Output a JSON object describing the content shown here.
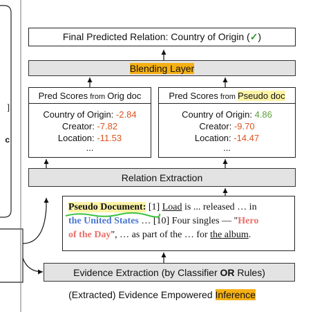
{
  "left_panel": {
    "fragments": [
      "]",
      "c"
    ]
  },
  "final_box": {
    "label": "Final Predicted Relation: Country of Origin (",
    "check": "✓",
    "close": ")"
  },
  "blending_layer": "Blending Layer",
  "orig_scores": {
    "title_big": "Pred Scores",
    "title_small": " from ",
    "title_tail": "Orig doc",
    "rows": [
      {
        "label": "Country of Origin: ",
        "value": "-2.84",
        "kind": "neg"
      },
      {
        "label": "Creator: ",
        "value": "-7.82",
        "kind": "neg"
      },
      {
        "label": "Location: ",
        "value": "-11.53",
        "kind": "neg"
      }
    ],
    "ellipsis": "..."
  },
  "pseudo_scores": {
    "title_big": "Pred Scores",
    "title_small": " from ",
    "title_tail": "Pseudo doc",
    "rows": [
      {
        "label": "Country of Origin: ",
        "value": "4.86",
        "kind": "pos"
      },
      {
        "label": "Creator: ",
        "value": "-9.70",
        "kind": "neg"
      },
      {
        "label": "Location: ",
        "value": "-14.47",
        "kind": "neg"
      }
    ],
    "ellipsis": "..."
  },
  "relation_extraction": "Relation Extraction",
  "pseudo_document": {
    "title": "Pseudo Document:",
    "s1": " [1] ",
    "load": "Load",
    "s2": " is ... released … in",
    "country": "the United States",
    "s3": " … [10] Four singles — \"",
    "hero1": "Hero",
    "hero2": "of the Day",
    "s4": "\", … as part of the … for ",
    "album": "the album",
    "s5": "."
  },
  "evidence_extraction": {
    "pre": "Evidence Extraction (by Classifier ",
    "or": "OR",
    "post": " Rules)"
  },
  "caption": {
    "pre": "(Extracted) Evidence Empowered ",
    "hl": "Inference"
  },
  "colors": {
    "highlight": "#f5b014",
    "pseudo_title_highlight": "#fbf3a6",
    "negative": "#d9541e",
    "positive": "#5a9e3c",
    "entity_blue": "#4a77cf",
    "entity_pink": "#e8706a"
  }
}
